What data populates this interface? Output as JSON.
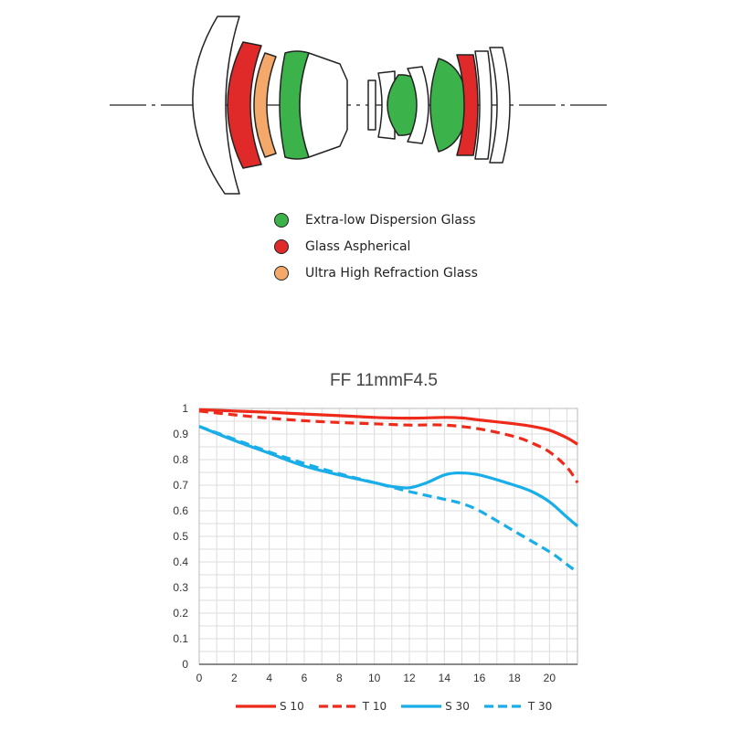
{
  "legend": [
    {
      "label": "Extra-low Dispersion Glass",
      "color": "#3cb34a"
    },
    {
      "label": "Glass Aspherical",
      "color": "#e02a2a"
    },
    {
      "label": "Ultra High Refraction Glass",
      "color": "#f4a96a"
    }
  ],
  "chart_data": {
    "type": "line",
    "title": "FF 11mmF4.5",
    "xlabel": "",
    "ylabel": "",
    "xlim": [
      0,
      21.6
    ],
    "ylim": [
      0,
      1
    ],
    "xticks": [
      "0",
      "2",
      "4",
      "6",
      "8",
      "10",
      "12",
      "14",
      "16",
      "18",
      "20"
    ],
    "yticks": [
      "0",
      "0.1",
      "0.2",
      "0.3",
      "0.4",
      "0.5",
      "0.6",
      "0.7",
      "0.8",
      "0.9",
      "1"
    ],
    "grid": true,
    "legend_position": "bottom",
    "series": [
      {
        "name": "S 10",
        "color": "#ee2a1b",
        "dashed": false,
        "x": [
          0,
          2,
          4,
          6,
          8,
          10,
          12,
          14,
          15,
          16,
          18,
          19,
          20,
          21,
          21.6
        ],
        "y": [
          0.995,
          0.99,
          0.985,
          0.978,
          0.972,
          0.965,
          0.962,
          0.965,
          0.963,
          0.955,
          0.94,
          0.93,
          0.915,
          0.885,
          0.86
        ]
      },
      {
        "name": "T 10",
        "color": "#ee2a1b",
        "dashed": true,
        "x": [
          0,
          2,
          4,
          6,
          8,
          10,
          12,
          14,
          16,
          18,
          19,
          20,
          21,
          21.6
        ],
        "y": [
          0.99,
          0.975,
          0.962,
          0.952,
          0.945,
          0.94,
          0.935,
          0.935,
          0.92,
          0.89,
          0.865,
          0.83,
          0.77,
          0.71
        ]
      },
      {
        "name": "S 30",
        "color": "#1aaee8",
        "dashed": false,
        "x": [
          0,
          2,
          4,
          6,
          8,
          10,
          11,
          12,
          13,
          14,
          14.8,
          16,
          18,
          19,
          20,
          21,
          21.6
        ],
        "y": [
          0.93,
          0.875,
          0.825,
          0.775,
          0.74,
          0.71,
          0.695,
          0.69,
          0.71,
          0.74,
          0.748,
          0.74,
          0.7,
          0.675,
          0.635,
          0.575,
          0.54
        ]
      },
      {
        "name": "T 30",
        "color": "#1aaee8",
        "dashed": true,
        "x": [
          0,
          2,
          4,
          6,
          8,
          10,
          12,
          14,
          15,
          16,
          18,
          20,
          21,
          21.6
        ],
        "y": [
          0.93,
          0.88,
          0.83,
          0.785,
          0.745,
          0.71,
          0.675,
          0.645,
          0.628,
          0.6,
          0.52,
          0.44,
          0.39,
          0.36
        ]
      }
    ]
  }
}
